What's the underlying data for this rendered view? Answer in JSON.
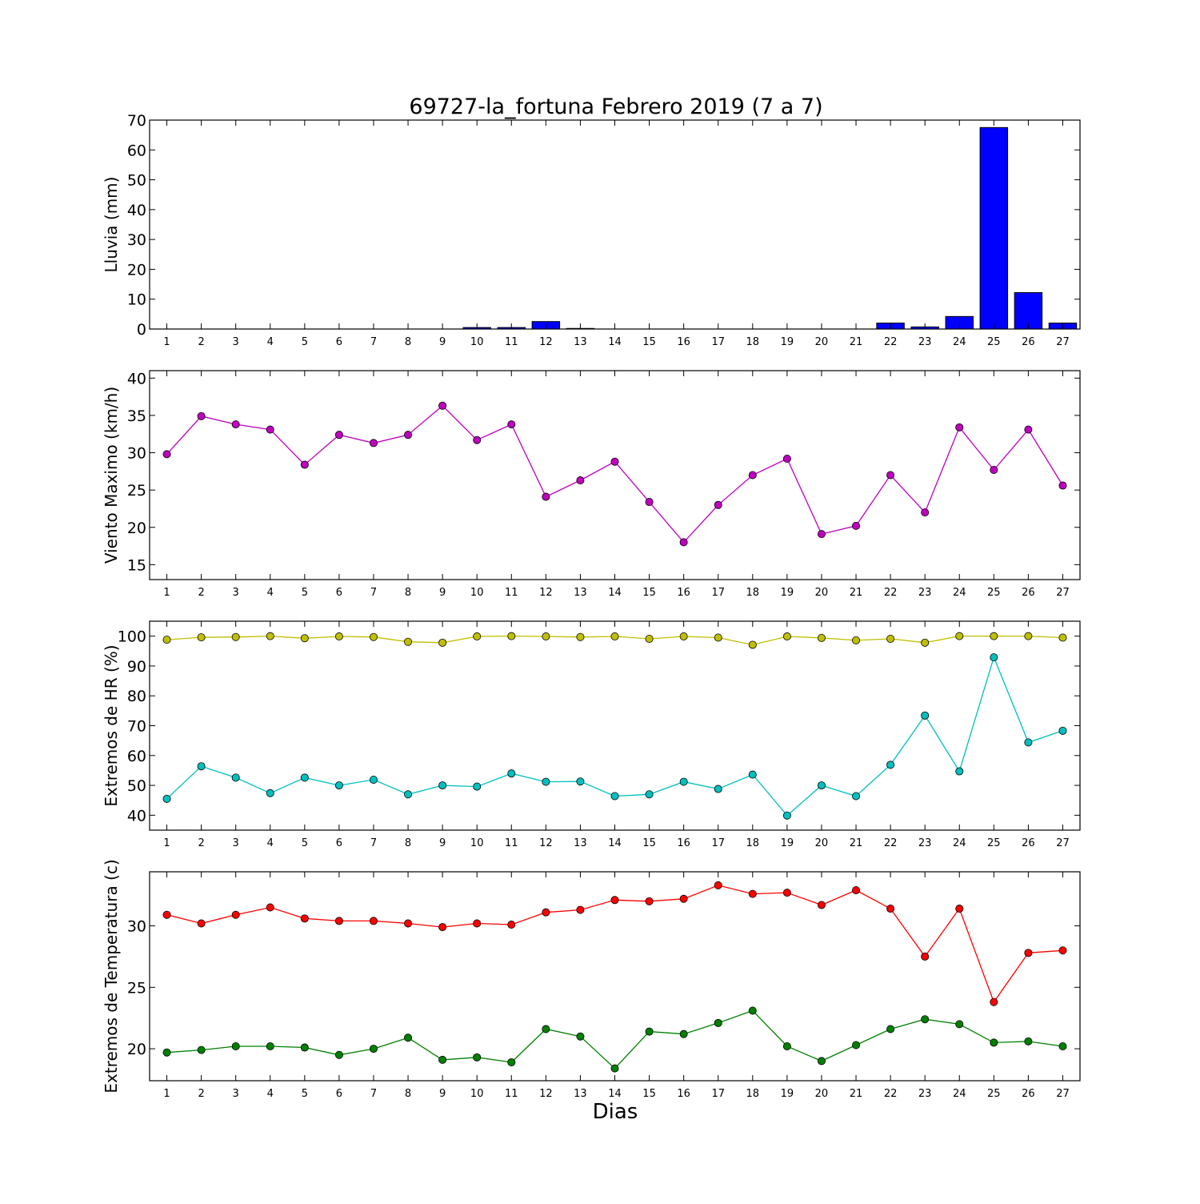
{
  "chart_data": {
    "title": "69727-la_fortuna Febrero 2019  (7 a 7)",
    "xlabel": "Dias",
    "x": [
      1,
      2,
      3,
      4,
      5,
      6,
      7,
      8,
      9,
      10,
      11,
      12,
      13,
      14,
      15,
      16,
      17,
      18,
      19,
      20,
      21,
      22,
      23,
      24,
      25,
      26,
      27
    ],
    "charts": [
      {
        "type": "bar",
        "ylabel": "Lluvia (mm)",
        "ylim": [
          0,
          70
        ],
        "yticks": [
          0,
          10,
          20,
          30,
          40,
          50,
          60,
          70
        ],
        "grid": false,
        "series": [
          {
            "color": "#0000ff",
            "values": [
              0,
              0,
              0,
              0,
              0,
              0,
              0,
              0,
              0,
              0.5,
              0.5,
              2.5,
              0.2,
              0,
              0,
              0,
              0,
              0,
              0,
              0,
              0,
              2,
              0.7,
              4.2,
              67.5,
              12.2,
              2
            ]
          }
        ]
      },
      {
        "type": "line",
        "ylabel": "Viento Maximo (km/h)",
        "ylim": [
          13,
          41
        ],
        "yticks": [
          15,
          20,
          25,
          30,
          35,
          40
        ],
        "grid": false,
        "series": [
          {
            "color": "#bf00bf",
            "values": [
              29.8,
              34.9,
              33.8,
              33.1,
              28.4,
              32.4,
              31.3,
              32.4,
              36.3,
              31.7,
              33.8,
              24.1,
              26.3,
              28.8,
              23.4,
              18.0,
              23.0,
              27.0,
              29.2,
              19.1,
              20.2,
              27.0,
              22.0,
              33.4,
              27.7,
              33.1,
              25.6
            ]
          }
        ]
      },
      {
        "type": "line",
        "ylabel": "Extremos de HR (%)",
        "ylim": [
          35,
          105
        ],
        "yticks": [
          40,
          50,
          60,
          70,
          80,
          90,
          100
        ],
        "grid": false,
        "series": [
          {
            "color": "#bfbf00",
            "values": [
              98.8,
              99.6,
              99.7,
              100,
              99.3,
              99.9,
              99.7,
              98.1,
              97.8,
              99.9,
              100,
              99.9,
              99.7,
              99.9,
              99.1,
              99.9,
              99.5,
              97.1,
              99.9,
              99.4,
              98.6,
              99.1,
              97.8,
              100,
              100,
              100,
              99.5
            ]
          },
          {
            "color": "#00bfbf",
            "values": [
              45.5,
              56.4,
              52.6,
              47.4,
              52.6,
              50.0,
              51.9,
              47.0,
              50.0,
              49.6,
              54.0,
              51.2,
              51.3,
              46.4,
              47.0,
              51.2,
              48.8,
              53.6,
              39.9,
              50.0,
              46.4,
              56.9,
              73.4,
              54.7,
              92.9,
              64.4,
              68.3
            ]
          }
        ]
      },
      {
        "type": "line",
        "ylabel": "Extremos de Temperatura (c)",
        "ylim": [
          17.4,
          34.4
        ],
        "yticks": [
          20,
          25,
          30
        ],
        "grid": false,
        "series": [
          {
            "color": "#ff0000",
            "values": [
              30.9,
              30.2,
              30.9,
              31.5,
              30.6,
              30.4,
              30.4,
              30.2,
              29.9,
              30.2,
              30.1,
              31.1,
              31.3,
              32.1,
              32.0,
              32.2,
              33.3,
              32.6,
              32.7,
              31.7,
              32.9,
              31.4,
              27.5,
              31.4,
              23.8,
              27.8,
              28.0
            ]
          },
          {
            "color": "#008000",
            "values": [
              19.7,
              19.9,
              20.2,
              20.2,
              20.1,
              19.5,
              20.0,
              20.9,
              19.1,
              19.3,
              18.9,
              21.6,
              21.0,
              18.4,
              21.4,
              21.2,
              22.1,
              23.1,
              20.2,
              19.0,
              20.3,
              21.6,
              22.4,
              22.0,
              20.5,
              20.6,
              20.2
            ]
          }
        ]
      }
    ]
  }
}
